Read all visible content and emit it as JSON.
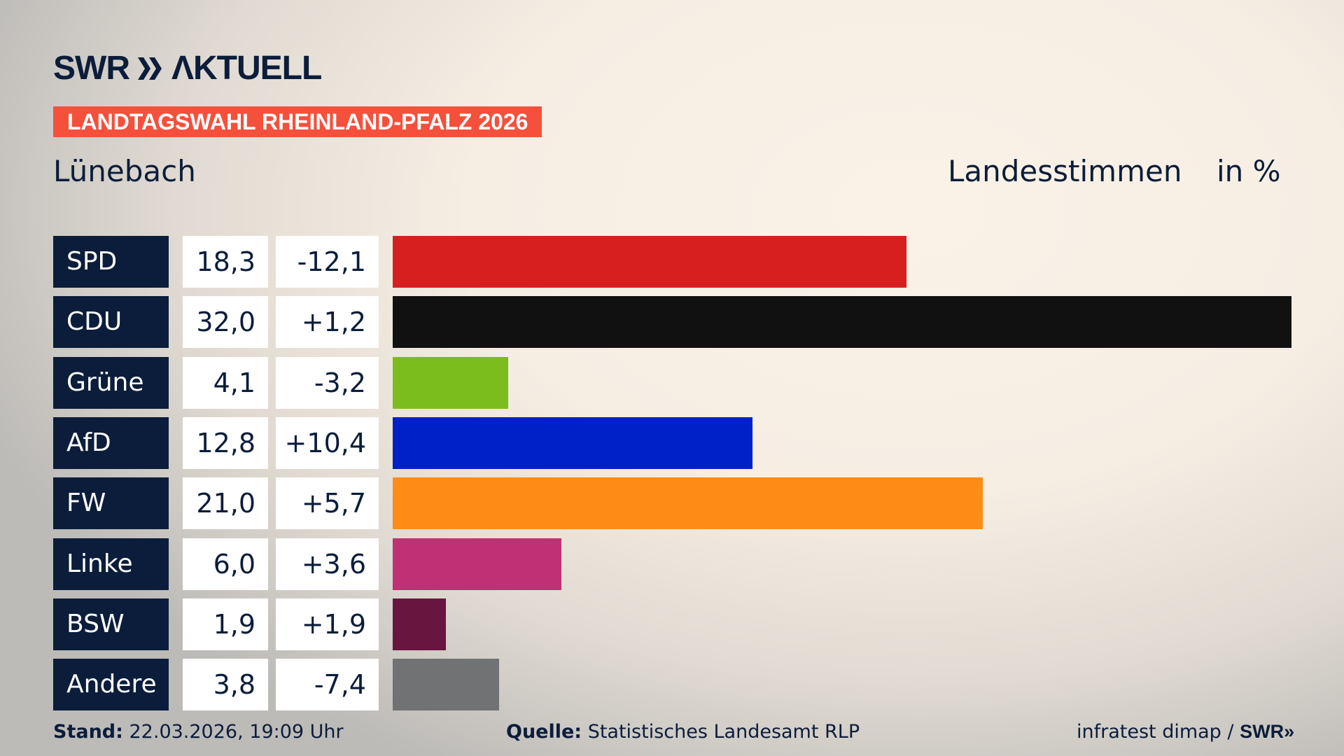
{
  "logo": "SWR AKTUELL",
  "banner": "LANDTAGSWAHL RHEINLAND-PFALZ 2026",
  "place": "Lünebach",
  "label_votes": "Landesstimmen",
  "label_unit": "in %",
  "chart_data": {
    "type": "bar",
    "orientation": "horizontal",
    "categories": [
      "SPD",
      "CDU",
      "Grüne",
      "AfD",
      "FW",
      "Linke",
      "BSW",
      "Andere"
    ],
    "values": [
      18.3,
      32.0,
      4.1,
      12.8,
      21.0,
      6.0,
      1.9,
      3.8
    ],
    "value_labels": [
      "18,3",
      "32,0",
      "4,1",
      "12,8",
      "21,0",
      "6,0",
      "1,9",
      "3,8"
    ],
    "changes": [
      -12.1,
      1.2,
      -3.2,
      10.4,
      5.7,
      3.6,
      1.9,
      -7.4
    ],
    "change_labels": [
      "-12,1",
      "+1,2",
      "-3,2",
      "+10,4",
      "+5,7",
      "+3,6",
      "+1,9",
      "-7,4"
    ],
    "colors": [
      "#d81f20",
      "#111111",
      "#7bbd1c",
      "#0020c8",
      "#ff8c16",
      "#bf3174",
      "#68163f",
      "#717273"
    ],
    "xlim": [
      0,
      32.0
    ],
    "grid": false
  },
  "footer": {
    "stand_label": "Stand:",
    "stand_value": " 22.03.2026, 19:09 Uhr",
    "source_label": "Quelle:",
    "source_value": " Statistisches Landesamt RLP",
    "credit": "infratest dimap / ",
    "credit_logo": "SWR"
  }
}
